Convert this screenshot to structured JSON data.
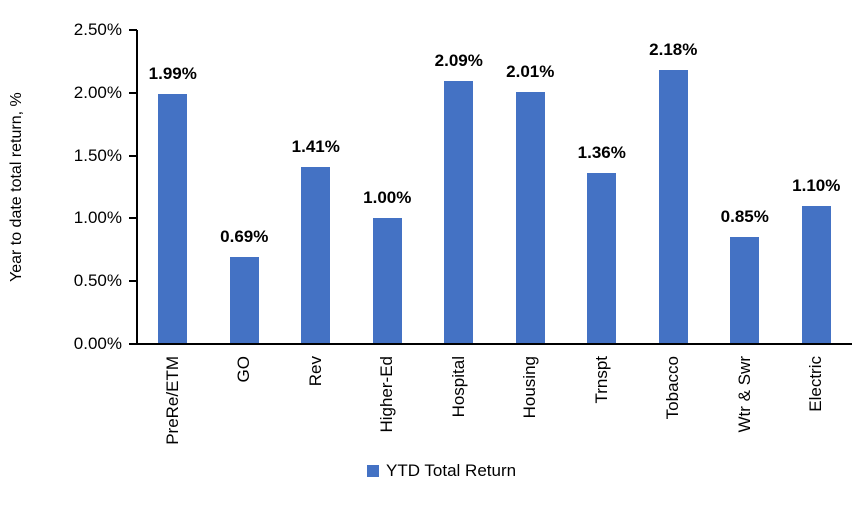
{
  "chart_data": {
    "type": "bar",
    "title": "",
    "xlabel": "",
    "ylabel": "Year to date total return, %",
    "categories": [
      "PreRe/ETM",
      "GO",
      "Rev",
      "Higher-Ed",
      "Hospital",
      "Housing",
      "Trnspt",
      "Tobacco",
      "Wtr & Swr",
      "Electric"
    ],
    "series": [
      {
        "name": "YTD Total Return",
        "values": [
          1.99,
          0.69,
          1.41,
          1.0,
          2.09,
          2.01,
          1.36,
          2.18,
          0.85,
          1.1
        ],
        "value_labels": [
          "1.99%",
          "0.69%",
          "1.41%",
          "1.00%",
          "2.09%",
          "2.01%",
          "1.36%",
          "2.18%",
          "0.85%",
          "1.10%"
        ],
        "color": "#4472C4"
      }
    ],
    "ylim": [
      0,
      2.5
    ],
    "yticks": [
      {
        "value": 0.0,
        "label": "0.00%"
      },
      {
        "value": 0.5,
        "label": "0.50%"
      },
      {
        "value": 1.0,
        "label": "1.00%"
      },
      {
        "value": 1.5,
        "label": "1.50%"
      },
      {
        "value": 2.0,
        "label": "2.00%"
      },
      {
        "value": 2.5,
        "label": "2.50%"
      }
    ],
    "grid": false,
    "legend": {
      "position": "bottom",
      "entries": [
        {
          "label": "YTD Total Return",
          "color": "#4472C4"
        }
      ]
    },
    "axis_color": "#000000",
    "text_color": "#000000"
  }
}
